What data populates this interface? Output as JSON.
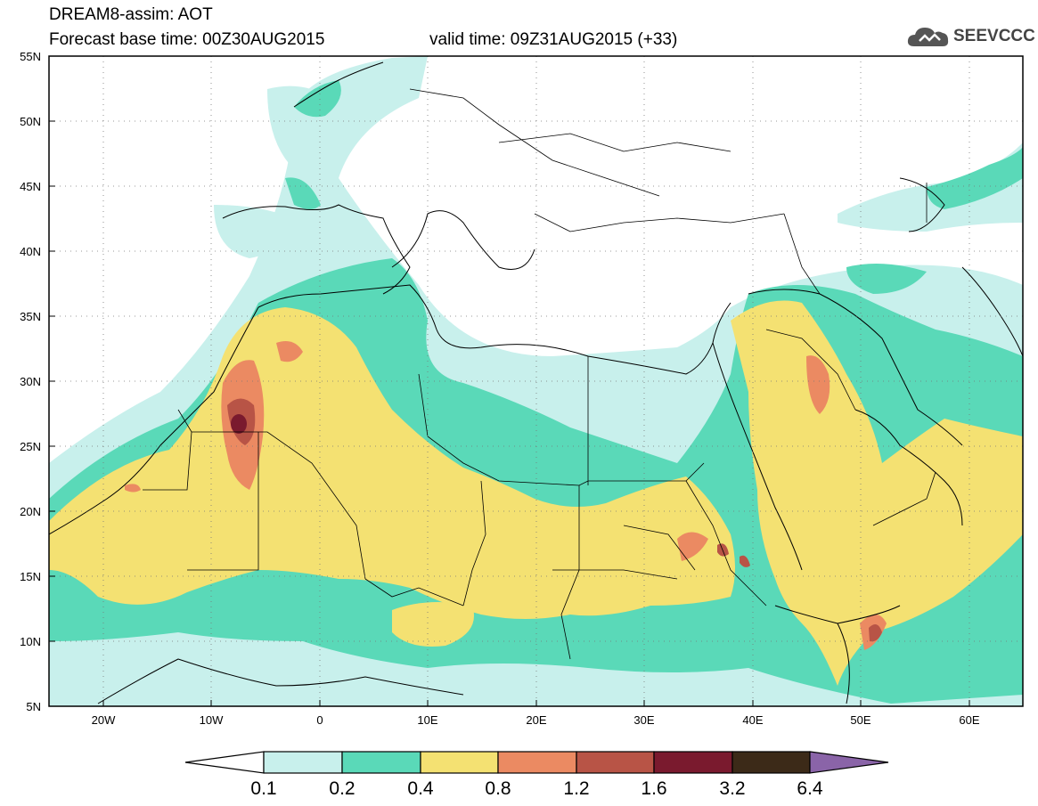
{
  "header": {
    "title": "DREAM8-assim: AOT",
    "base_time": "Forecast base time: 00Z30AUG2015",
    "valid_time": "valid time: 09Z31AUG2015 (+33)"
  },
  "logo": {
    "text": "SEEVCCC",
    "icon": "cloud-icon"
  },
  "map": {
    "lon_range": [
      -25,
      65
    ],
    "lat_range": [
      5,
      55
    ],
    "lat_ticks": [
      "55N",
      "50N",
      "45N",
      "40N",
      "35N",
      "30N",
      "25N",
      "20N",
      "15N",
      "10N",
      "5N"
    ],
    "lon_ticks": [
      "20W",
      "10W",
      "0",
      "10E",
      "20E",
      "30E",
      "40E",
      "50E",
      "60E"
    ]
  },
  "colorbar": {
    "levels": [
      "0.1",
      "0.2",
      "0.4",
      "0.8",
      "1.2",
      "1.6",
      "3.2",
      "6.4"
    ],
    "colors": [
      "#c8f0ec",
      "#5ad9b8",
      "#f4e172",
      "#eb8a62",
      "#b85446",
      "#7a1a2e",
      "#3c2a18"
    ],
    "under_color": "#ffffff",
    "over_color": "#8a64a8"
  }
}
